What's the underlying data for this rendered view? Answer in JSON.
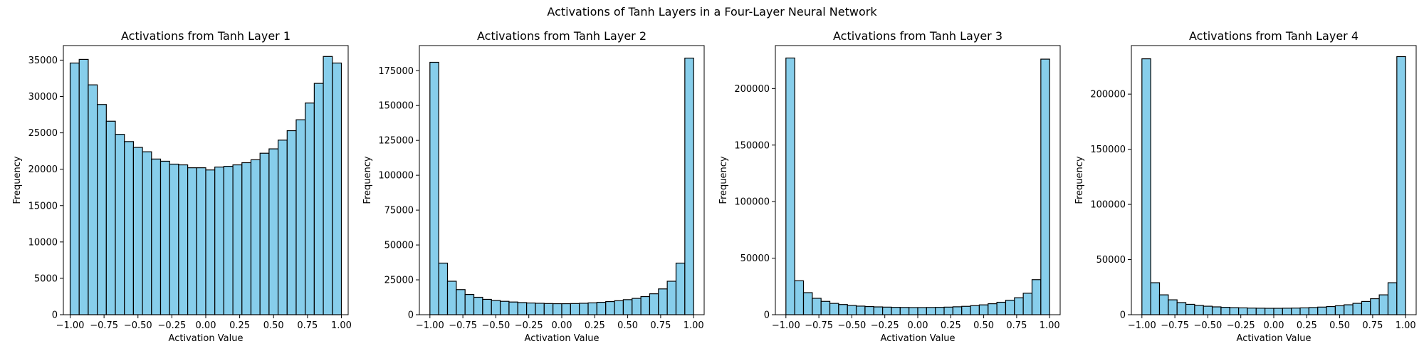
{
  "figure": {
    "suptitle": "Activations of Tanh Layers in a Four-Layer Neural Network"
  },
  "colors": {
    "bar_fill": "#87ceeb",
    "bar_edge": "#000000",
    "axes": "#000000",
    "background": "#ffffff"
  },
  "chart_data": [
    {
      "type": "bar",
      "title": "Activations from Tanh Layer 1",
      "xlabel": "Activation Value",
      "ylabel": "Frequency",
      "xlim": [
        -1.05,
        1.05
      ],
      "ylim": [
        0,
        37000
      ],
      "bin_range": [
        -1.0,
        1.0
      ],
      "num_bins": 30,
      "xticks": [
        -1.0,
        -0.75,
        -0.5,
        -0.25,
        0.0,
        0.25,
        0.5,
        0.75,
        1.0
      ],
      "xtick_labels": [
        "−1.00",
        "−0.75",
        "−0.50",
        "−0.25",
        "0.00",
        "0.25",
        "0.50",
        "0.75",
        "1.00"
      ],
      "yticks": [
        0,
        5000,
        10000,
        15000,
        20000,
        25000,
        30000,
        35000
      ],
      "ytick_labels": [
        "0",
        "5000",
        "10000",
        "15000",
        "20000",
        "25000",
        "30000",
        "35000"
      ],
      "values": [
        34600,
        35100,
        31600,
        28900,
        26600,
        24800,
        23800,
        23000,
        22400,
        21400,
        21100,
        20700,
        20600,
        20200,
        20200,
        19900,
        20300,
        20400,
        20600,
        20900,
        21300,
        22200,
        22800,
        24000,
        25300,
        26800,
        29100,
        31800,
        35500,
        34600
      ],
      "grid": false
    },
    {
      "type": "bar",
      "title": "Activations from Tanh Layer 2",
      "xlabel": "Activation Value",
      "ylabel": "Frequency",
      "xlim": [
        -1.08,
        1.08
      ],
      "ylim": [
        0,
        193000
      ],
      "bin_range": [
        -1.0,
        1.0
      ],
      "num_bins": 30,
      "xticks": [
        -1.0,
        -0.75,
        -0.5,
        -0.25,
        0.0,
        0.25,
        0.5,
        0.75,
        1.0
      ],
      "xtick_labels": [
        "−1.00",
        "−0.75",
        "−0.50",
        "−0.25",
        "0.00",
        "0.25",
        "0.50",
        "0.75",
        "1.00"
      ],
      "yticks": [
        0,
        25000,
        50000,
        75000,
        100000,
        125000,
        150000,
        175000
      ],
      "ytick_labels": [
        "0",
        "25000",
        "50000",
        "75000",
        "100000",
        "125000",
        "150000",
        "175000"
      ],
      "values": [
        181000,
        37000,
        24000,
        18000,
        14500,
        12500,
        11000,
        10200,
        9600,
        9100,
        8700,
        8400,
        8200,
        8000,
        7900,
        7900,
        8000,
        8200,
        8500,
        8900,
        9400,
        10000,
        10800,
        11700,
        13000,
        15000,
        18500,
        24000,
        37000,
        184000
      ],
      "grid": false
    },
    {
      "type": "bar",
      "title": "Activations from Tanh Layer 3",
      "xlabel": "Activation Value",
      "ylabel": "Frequency",
      "xlim": [
        -1.08,
        1.08
      ],
      "ylim": [
        0,
        238000
      ],
      "bin_range": [
        -1.0,
        1.0
      ],
      "num_bins": 30,
      "xticks": [
        -1.0,
        -0.75,
        -0.5,
        -0.25,
        0.0,
        0.25,
        0.5,
        0.75,
        1.0
      ],
      "xtick_labels": [
        "−1.00",
        "−0.75",
        "−0.50",
        "−0.25",
        "0.00",
        "0.25",
        "0.50",
        "0.75",
        "1.00"
      ],
      "yticks": [
        0,
        50000,
        100000,
        150000,
        200000
      ],
      "ytick_labels": [
        "0",
        "50000",
        "100000",
        "150000",
        "200000"
      ],
      "values": [
        227000,
        30000,
        19500,
        14500,
        11800,
        10000,
        9000,
        8200,
        7600,
        7200,
        6900,
        6700,
        6500,
        6400,
        6300,
        6300,
        6400,
        6500,
        6700,
        7000,
        7400,
        8000,
        8700,
        9700,
        11000,
        12800,
        15000,
        19000,
        31000,
        226000
      ],
      "grid": false
    },
    {
      "type": "bar",
      "title": "Activations from Tanh Layer 4",
      "xlabel": "Activation Value",
      "ylabel": "Frequency",
      "xlim": [
        -1.08,
        1.08
      ],
      "ylim": [
        0,
        244000
      ],
      "bin_range": [
        -1.0,
        1.0
      ],
      "num_bins": 30,
      "xticks": [
        -1.0,
        -0.75,
        -0.5,
        -0.25,
        0.0,
        0.25,
        0.5,
        0.75,
        1.0
      ],
      "xtick_labels": [
        "−1.00",
        "−0.75",
        "−0.50",
        "−0.25",
        "0.00",
        "0.25",
        "0.50",
        "0.75",
        "1.00"
      ],
      "yticks": [
        0,
        50000,
        100000,
        150000,
        200000
      ],
      "ytick_labels": [
        "0",
        "50000",
        "100000",
        "150000",
        "200000"
      ],
      "values": [
        232000,
        29000,
        18000,
        13500,
        11000,
        9400,
        8400,
        7700,
        7100,
        6700,
        6400,
        6200,
        6000,
        5900,
        5800,
        5800,
        5900,
        6000,
        6200,
        6500,
        6900,
        7400,
        8100,
        9000,
        10300,
        12000,
        14500,
        18000,
        29000,
        234000
      ],
      "grid": false
    }
  ]
}
